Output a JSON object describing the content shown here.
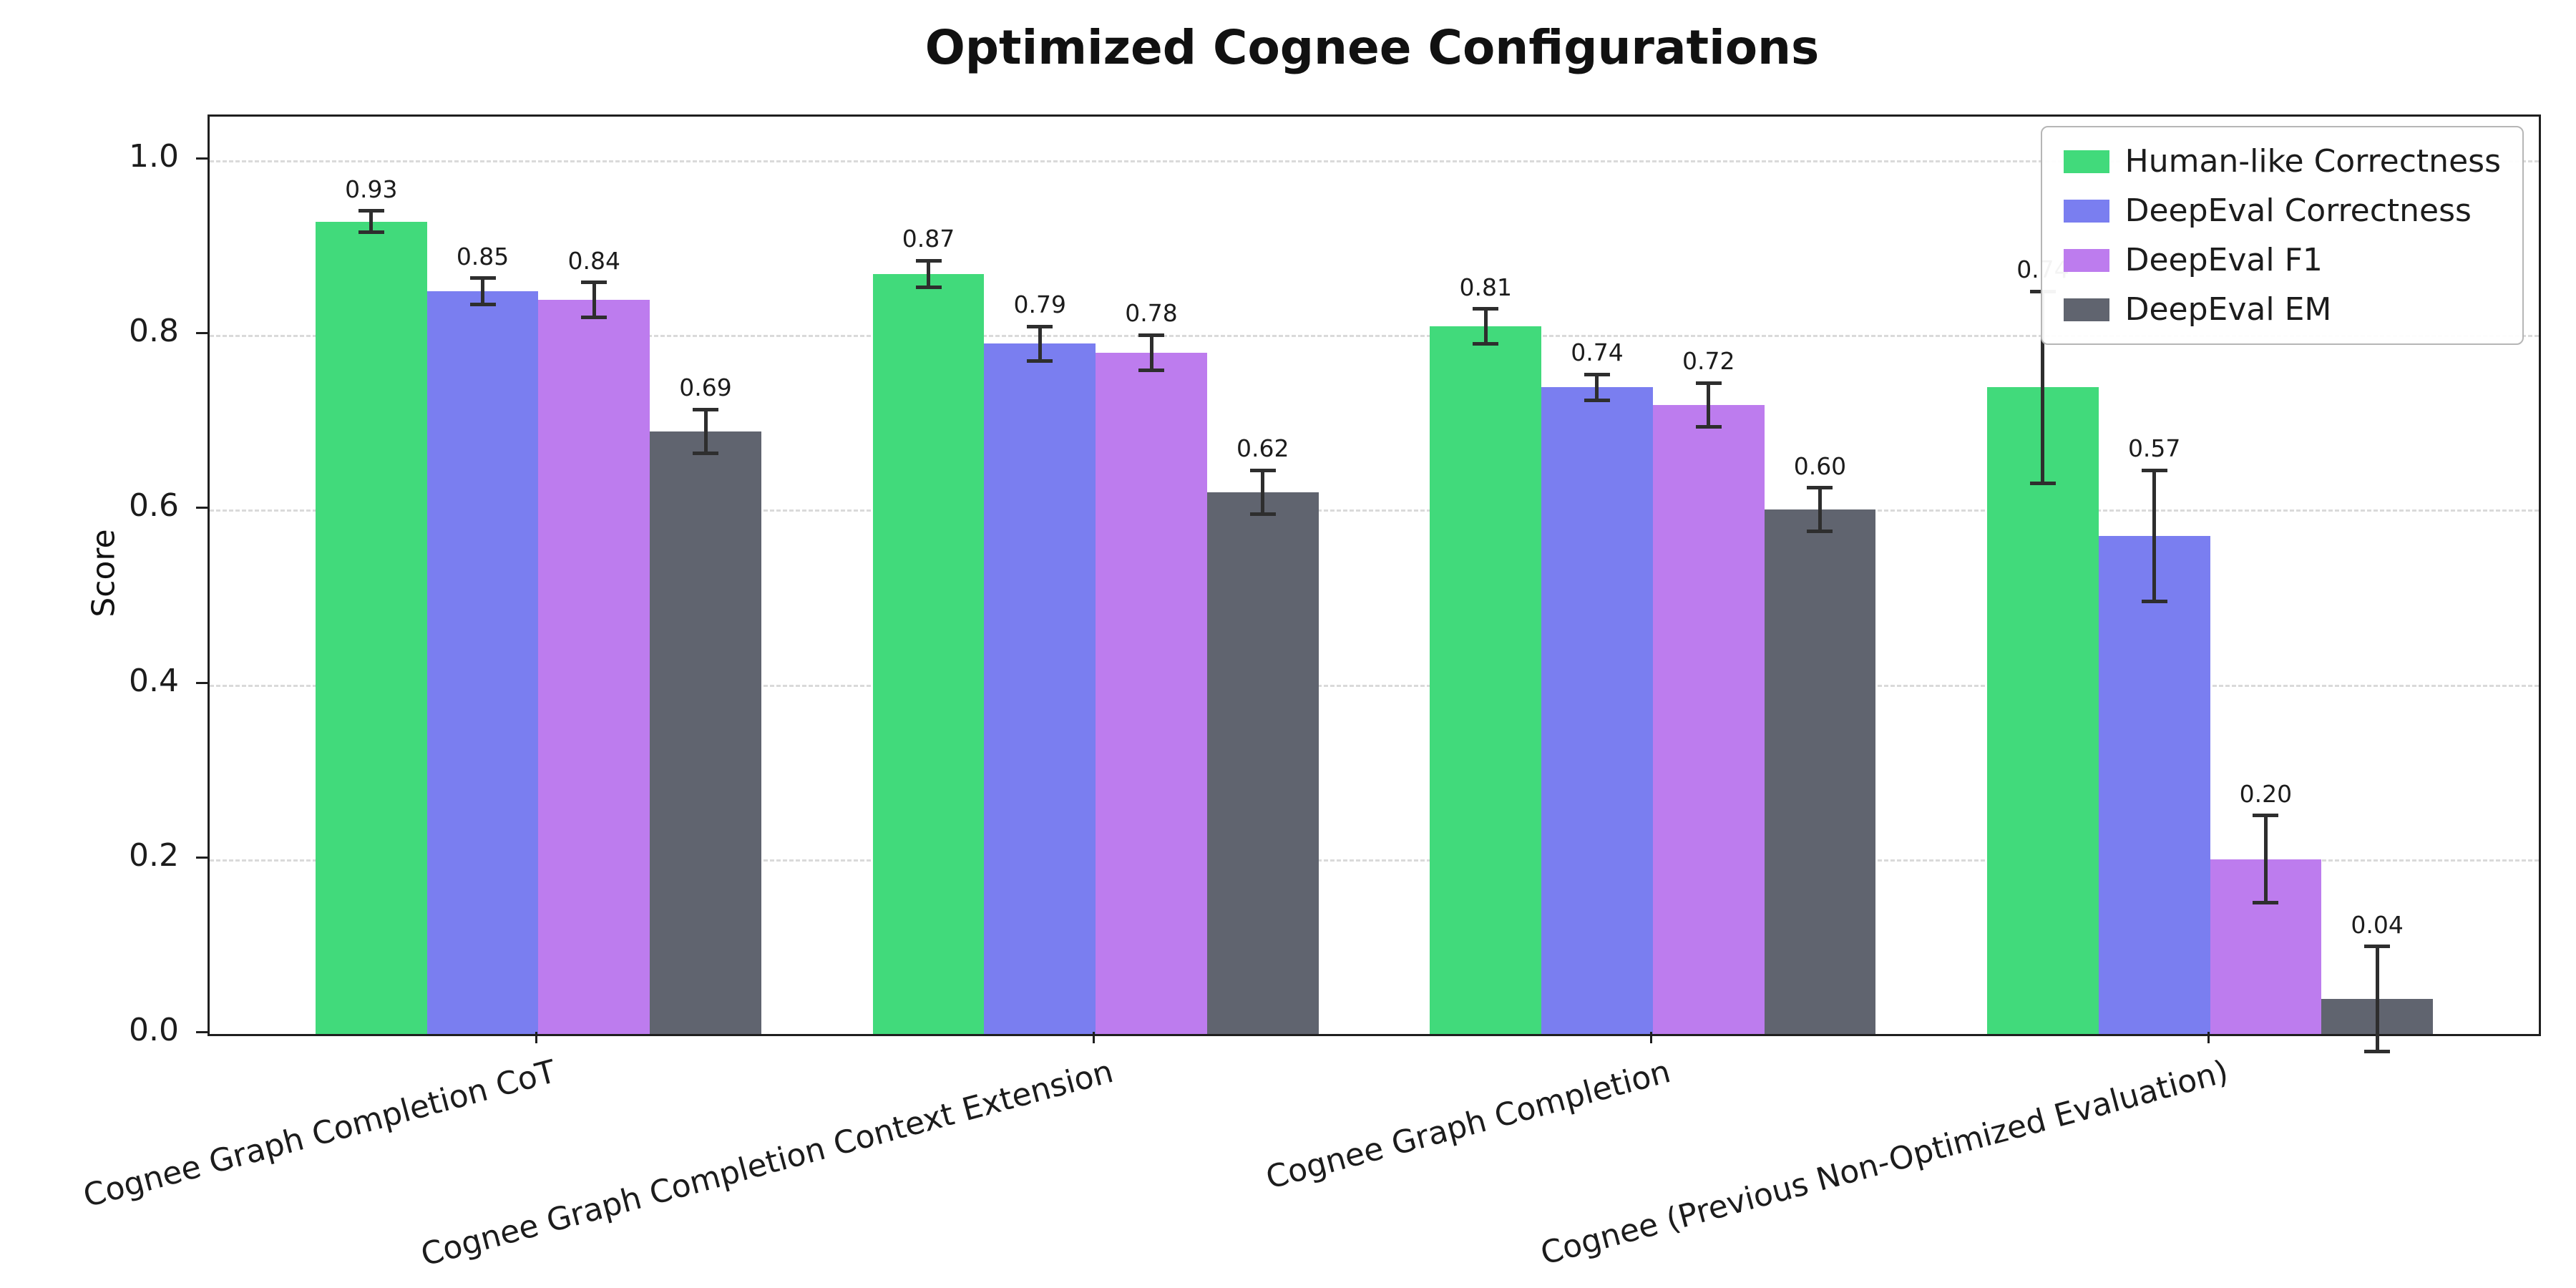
{
  "chart_data": {
    "type": "bar",
    "title": "Optimized Cognee Configurations",
    "xlabel": "",
    "ylabel": "Score",
    "ylim": [
      0,
      1.05
    ],
    "yticks": [
      0.0,
      0.2,
      0.4,
      0.6,
      0.8,
      1.0
    ],
    "ytick_labels": [
      "0.0",
      "0.2",
      "0.4",
      "0.6",
      "0.8",
      "1.0"
    ],
    "grid": "horizontal-dashed",
    "legend_position": "upper right",
    "categories": [
      "Cognee Graph Completion CoT",
      "Cognee Graph Completion Context Extension",
      "Cognee Graph Completion",
      "Cognee (Previous Non-Optimized Evaluation)"
    ],
    "series": [
      {
        "name": "Human-like Correctness",
        "color": "#41da7b",
        "values": [
          0.93,
          0.87,
          0.81,
          0.74
        ],
        "errors": [
          0.012,
          0.015,
          0.02,
          0.11
        ],
        "value_labels": [
          "0.93",
          "0.87",
          "0.81",
          "0.74"
        ]
      },
      {
        "name": "DeepEval Correctness",
        "color": "#7a7ef0",
        "values": [
          0.85,
          0.79,
          0.74,
          0.57
        ],
        "errors": [
          0.015,
          0.02,
          0.015,
          0.075
        ],
        "value_labels": [
          "0.85",
          "0.79",
          "0.74",
          "0.57"
        ]
      },
      {
        "name": "DeepEval F1",
        "color": "#bd7cee",
        "values": [
          0.84,
          0.78,
          0.72,
          0.2
        ],
        "errors": [
          0.02,
          0.02,
          0.025,
          0.05
        ],
        "value_labels": [
          "0.84",
          "0.78",
          "0.72",
          "0.20"
        ]
      },
      {
        "name": "DeepEval EM",
        "color": "#60646f",
        "values": [
          0.69,
          0.62,
          0.6,
          0.04
        ],
        "errors": [
          0.025,
          0.025,
          0.025,
          0.06
        ],
        "value_labels": [
          "0.69",
          "0.62",
          "0.60",
          "0.04"
        ]
      }
    ]
  }
}
